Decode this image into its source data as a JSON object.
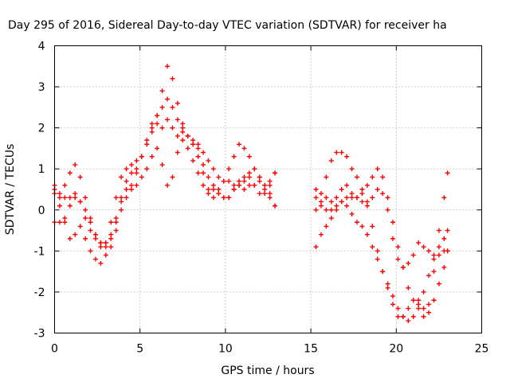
{
  "chart_data": {
    "type": "scatter",
    "title": "Day 295 of 2016, Sidereal Day-to-day VTEC variation (SDTVAR) for receiver ha",
    "xlabel": "GPS time / hours",
    "ylabel": "SDTVAR / TECUs",
    "xlim": [
      0,
      25
    ],
    "ylim": [
      -3,
      4
    ],
    "xticks": [
      "0",
      "5",
      "10",
      "15",
      "20",
      "25"
    ],
    "yticks": [
      "-3",
      "-2",
      "-1",
      "0",
      "1",
      "2",
      "3",
      "4"
    ],
    "grid": true,
    "marker": "plus",
    "color": "#ff0000",
    "series": [
      {
        "x": [
          0.0,
          0.3,
          0.6,
          0.9,
          1.2,
          1.5,
          1.8,
          2.1,
          2.4,
          2.7,
          3.0,
          3.3,
          3.6,
          3.9,
          4.2,
          4.5,
          4.8,
          5.1,
          5.4,
          5.7,
          6.0,
          6.3,
          6.6,
          6.9,
          7.2,
          7.5,
          7.8,
          8.1,
          8.4,
          8.7,
          9.0,
          9.3,
          9.6,
          9.9,
          10.2,
          10.5,
          10.8,
          11.1,
          11.4,
          11.7,
          12.0,
          12.3,
          12.6,
          12.9
        ],
        "y": [
          0.5,
          0.3,
          0.6,
          0.9,
          1.1,
          0.8,
          0.3,
          -0.2,
          -0.6,
          -0.9,
          -0.8,
          -0.3,
          0.3,
          0.8,
          1.0,
          1.1,
          1.2,
          1.3,
          1.6,
          1.9,
          2.3,
          2.9,
          3.5,
          3.2,
          2.6,
          2.1,
          1.8,
          1.6,
          1.6,
          1.4,
          1.2,
          1.0,
          0.8,
          0.7,
          0.7,
          0.6,
          0.7,
          0.8,
          0.9,
          1.0,
          0.8,
          0.5,
          0.3,
          0.1
        ]
      },
      {
        "x": [
          0.0,
          0.3,
          0.6,
          0.9,
          1.2,
          1.5,
          1.8,
          2.1,
          2.4,
          2.7,
          3.0,
          3.3,
          3.6,
          3.9,
          4.2,
          4.5,
          4.8,
          5.1,
          5.4,
          5.7,
          6.0,
          6.3,
          6.6,
          6.9,
          7.2,
          7.5,
          7.8,
          8.1,
          8.4,
          8.7,
          9.0,
          9.3,
          9.6,
          9.9,
          10.2,
          10.5,
          10.8,
          11.1,
          11.4,
          11.7,
          12.0,
          12.3,
          12.6,
          12.9
        ],
        "y": [
          -0.3,
          -0.3,
          -0.2,
          0.1,
          0.3,
          0.2,
          0.0,
          -0.3,
          -0.6,
          -0.8,
          -0.8,
          -0.6,
          -0.2,
          0.3,
          0.7,
          0.9,
          1.0,
          1.3,
          1.6,
          2.0,
          2.3,
          2.5,
          2.7,
          2.5,
          2.2,
          2.0,
          1.8,
          1.6,
          1.3,
          0.9,
          0.5,
          0.3,
          0.5,
          0.7,
          1.0,
          1.3,
          1.6,
          1.5,
          1.3,
          1.0,
          0.8,
          0.6,
          0.7,
          0.9
        ]
      },
      {
        "x": [
          0.0,
          0.3,
          0.6,
          0.9,
          1.2,
          1.5,
          1.8,
          2.1,
          2.4,
          2.7,
          3.0,
          3.3,
          3.6,
          3.9,
          4.2,
          4.5,
          4.8,
          5.1,
          5.4,
          5.7,
          6.0,
          6.3,
          6.6,
          6.9,
          7.2,
          7.5,
          7.8,
          8.1,
          8.4,
          8.7,
          9.0,
          9.3,
          9.6,
          9.9,
          10.2,
          10.5,
          10.8,
          11.1,
          11.4,
          11.7,
          12.0,
          12.3,
          12.6,
          12.9
        ],
        "y": [
          0.4,
          0.1,
          -0.3,
          -0.7,
          -0.6,
          -0.4,
          -0.7,
          -1.0,
          -1.2,
          -1.3,
          -1.1,
          -0.9,
          -0.5,
          0.0,
          0.3,
          0.6,
          0.9,
          1.3,
          1.7,
          2.1,
          2.1,
          2.0,
          2.2,
          2.0,
          1.8,
          1.9,
          1.8,
          1.7,
          1.5,
          1.1,
          0.8,
          0.6,
          0.4,
          0.3,
          0.3,
          0.5,
          0.6,
          0.5,
          0.6,
          0.6,
          0.7,
          0.6,
          0.4,
          0.1
        ]
      },
      {
        "x": [
          0.0,
          0.3,
          0.6,
          0.9,
          1.2,
          1.5,
          1.8,
          2.1,
          2.4,
          2.7,
          3.0,
          3.3,
          3.6,
          3.9,
          4.2,
          4.5,
          4.8,
          5.1,
          5.4,
          5.7,
          6.0,
          6.3,
          6.6,
          6.9,
          7.2,
          7.5,
          7.8,
          8.1,
          8.4,
          8.7,
          9.0,
          9.3,
          9.6,
          9.9,
          10.2,
          10.5,
          10.8,
          11.1,
          11.4,
          11.7,
          12.0,
          12.3,
          12.6,
          12.9
        ],
        "y": [
          0.6,
          0.4,
          0.3,
          0.3,
          0.4,
          0.2,
          -0.2,
          -0.5,
          -0.7,
          -0.8,
          -0.9,
          -0.7,
          -0.3,
          0.2,
          0.5,
          0.5,
          0.6,
          0.8,
          1.0,
          1.3,
          1.5,
          1.1,
          0.6,
          0.8,
          1.4,
          1.7,
          1.5,
          1.2,
          0.9,
          0.6,
          0.4,
          0.5,
          0.4,
          0.3,
          0.3,
          0.5,
          0.6,
          0.7,
          0.8,
          0.6,
          0.4,
          0.4,
          0.6,
          0.9
        ]
      },
      {
        "x": [
          15.3,
          15.6,
          15.9,
          16.2,
          16.5,
          16.8,
          17.1,
          17.4,
          17.7,
          18.0,
          18.3,
          18.6,
          18.9,
          19.2,
          19.5,
          19.8,
          20.1,
          20.4,
          20.7,
          21.0,
          21.3,
          21.6,
          21.9,
          22.2,
          22.5,
          22.8,
          23.0
        ],
        "y": [
          0.5,
          0.2,
          0.3,
          0.2,
          0.3,
          0.5,
          0.6,
          0.4,
          0.3,
          0.2,
          0.2,
          0.3,
          0.5,
          0.4,
          0.0,
          -0.7,
          -1.2,
          -1.4,
          -1.3,
          -1.1,
          -0.8,
          -0.9,
          -1.0,
          -1.1,
          -1.1,
          -1.0,
          -1.0
        ]
      },
      {
        "x": [
          15.3,
          15.6,
          15.9,
          16.2,
          16.5,
          16.8,
          17.1,
          17.4,
          17.7,
          18.0,
          18.3,
          18.6,
          18.9,
          19.2,
          19.5,
          19.8,
          20.1,
          20.4,
          20.7,
          21.0,
          21.3,
          21.6,
          21.9,
          22.2,
          22.5,
          22.8,
          23.0
        ],
        "y": [
          0.0,
          0.4,
          0.8,
          1.2,
          1.4,
          1.4,
          1.3,
          1.0,
          0.8,
          0.5,
          0.1,
          -0.4,
          -1.0,
          -1.5,
          -1.9,
          -2.3,
          -2.6,
          -2.6,
          -2.4,
          -2.2,
          -2.2,
          -2.4,
          -2.3,
          -1.5,
          -0.5,
          0.3,
          0.9
        ]
      },
      {
        "x": [
          15.3,
          15.6,
          15.9,
          16.2,
          16.5,
          16.8,
          17.1,
          17.4,
          17.7,
          18.0,
          18.3,
          18.6,
          18.9,
          19.2,
          19.5,
          19.8,
          20.1,
          20.4,
          20.7,
          21.0,
          21.3,
          21.6,
          21.9,
          22.2,
          22.5,
          22.8,
          23.0
        ],
        "y": [
          -0.9,
          -0.6,
          -0.4,
          -0.2,
          0.0,
          0.2,
          0.1,
          -0.1,
          -0.3,
          -0.4,
          -0.6,
          -0.9,
          -1.2,
          -1.5,
          -1.8,
          -2.1,
          -2.4,
          -2.6,
          -2.7,
          -2.6,
          -2.3,
          -2.0,
          -1.6,
          -1.2,
          -0.9,
          -0.7,
          -0.5
        ]
      },
      {
        "x": [
          15.3,
          15.6,
          15.9,
          16.2,
          16.5,
          16.8,
          17.1,
          17.4,
          17.7,
          18.0,
          18.3,
          18.6,
          18.9,
          19.2,
          19.5,
          19.8,
          20.1,
          20.4,
          20.7,
          21.0,
          21.3,
          21.6,
          21.9,
          22.2,
          22.5,
          22.8,
          23.0
        ],
        "y": [
          0.3,
          0.1,
          0.0,
          0.0,
          0.1,
          0.2,
          0.3,
          0.3,
          0.3,
          0.4,
          0.6,
          0.8,
          1.0,
          0.8,
          0.3,
          -0.3,
          -0.9,
          -1.4,
          -1.9,
          -2.2,
          -2.4,
          -2.6,
          -2.5,
          -2.2,
          -1.8,
          -1.4,
          -1.0
        ]
      }
    ]
  }
}
